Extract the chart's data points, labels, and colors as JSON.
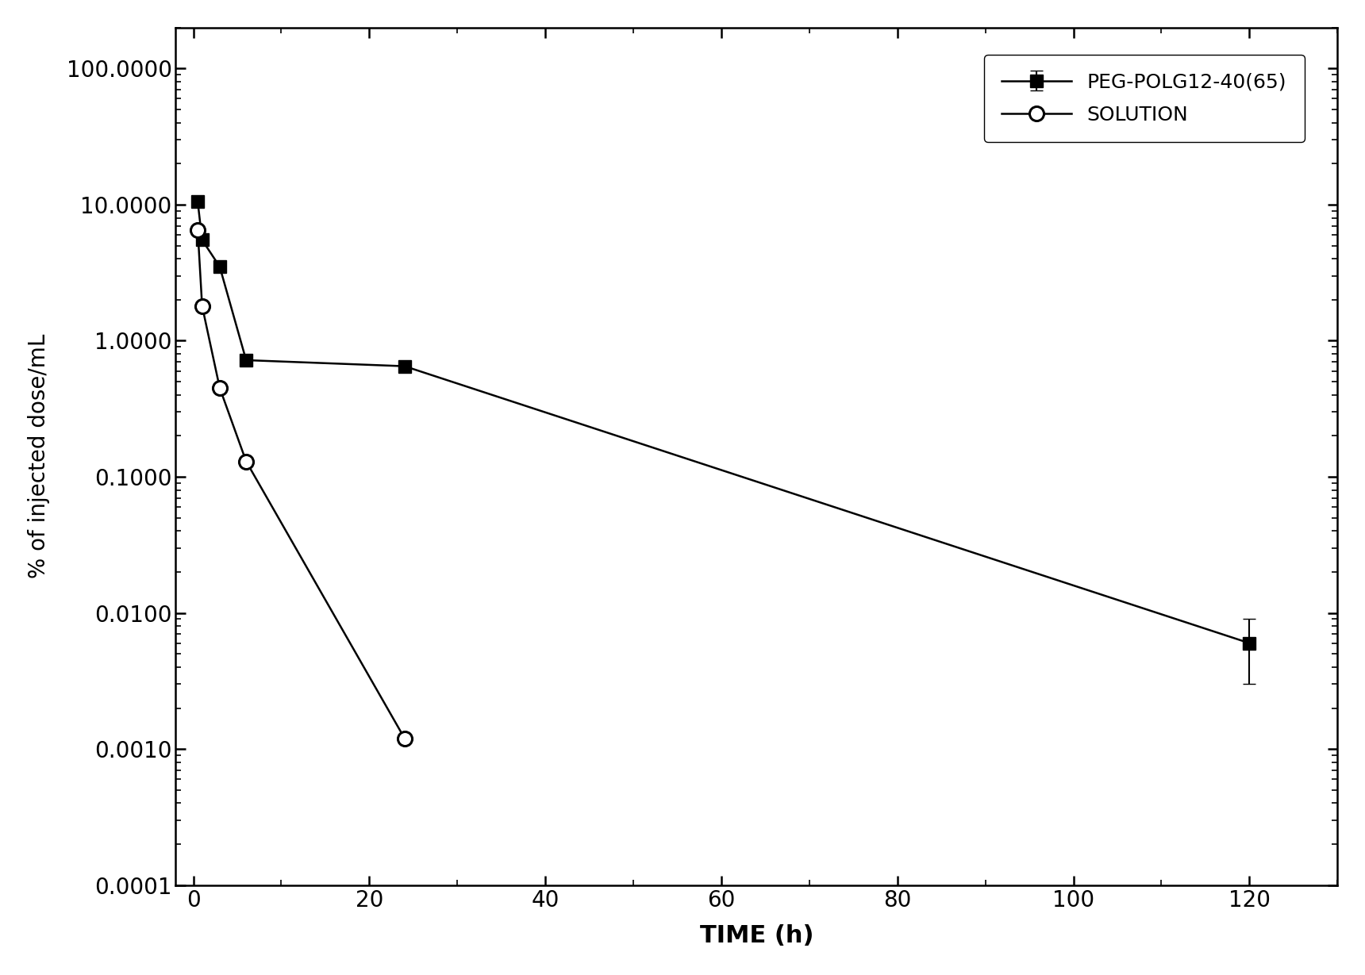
{
  "title": "",
  "xlabel": "TIME (h)",
  "ylabel": "% of injected dose/mL",
  "xlim": [
    -2,
    130
  ],
  "ylim_log": [
    0.0001,
    200.0
  ],
  "xticks": [
    0,
    20,
    40,
    60,
    80,
    100,
    120
  ],
  "series1_label": "PEG-POLG12-40(65)",
  "series1_x": [
    0.5,
    1,
    3,
    6,
    24,
    120
  ],
  "series1_y": [
    10.5,
    5.5,
    3.5,
    0.72,
    0.65,
    0.006
  ],
  "series1_yerr_low": [
    0,
    0,
    0,
    0,
    0,
    0.003
  ],
  "series1_yerr_high": [
    0,
    0,
    0,
    0,
    0,
    0.003
  ],
  "series2_label": "SOLUTION",
  "series2_x": [
    0.5,
    1,
    3,
    6,
    24
  ],
  "series2_y": [
    6.5,
    1.8,
    0.45,
    0.13,
    0.0012
  ],
  "series2_yerr_low": [
    0,
    0,
    0,
    0,
    0
  ],
  "series2_yerr_high": [
    0,
    0,
    0,
    0,
    0
  ],
  "ytick_values": [
    0.0001,
    0.001,
    0.01,
    0.1,
    1.0,
    10.0,
    100.0
  ],
  "ytick_labels": [
    "0.0001",
    "0.0010",
    "0.0100",
    "0.1000",
    "1.0000",
    "10.0000",
    "100.0000"
  ],
  "background_color": "#ffffff",
  "line_color": "#000000",
  "markersize1": 11,
  "markersize2": 13,
  "linewidth": 1.8,
  "capsize": 6,
  "tick_labelsize": 20,
  "xlabel_fontsize": 22,
  "ylabel_fontsize": 20,
  "legend_fontsize": 18
}
